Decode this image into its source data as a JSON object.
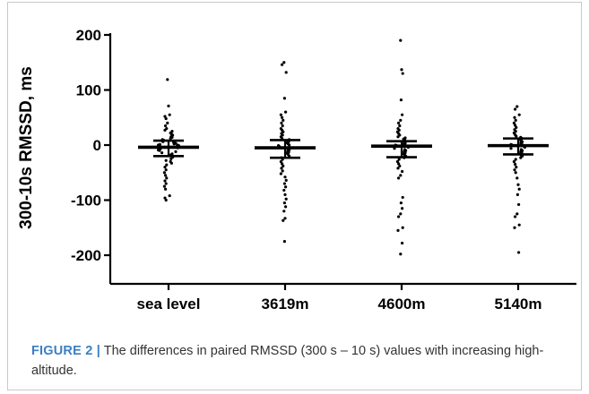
{
  "colors": {
    "axis": "#000000",
    "points": "#000000",
    "figure_label": "#3b7fc4",
    "caption_text": "#333333"
  },
  "caption": {
    "label": "FIGURE 2 |",
    "text": "The differences in paired RMSSD (300 s – 10 s) values with increasing high-altitude."
  },
  "chart_data": {
    "type": "scatter",
    "subtype": "dot-plot with mean and SD bars",
    "title": "",
    "xlabel": "",
    "ylabel": "300-10s RMSSD, ms",
    "ylim": [
      -250,
      200
    ],
    "yticks": [
      200,
      100,
      0,
      -100,
      -200
    ],
    "ytick_labels": [
      "200",
      "100",
      "0",
      "-100",
      "-200"
    ],
    "grid": false,
    "legend": "none",
    "categories": [
      "sea level",
      "3619m",
      "4600m",
      "5140m"
    ],
    "summary": [
      {
        "category": "sea level",
        "mean": -4,
        "upper": 8,
        "lower": -20
      },
      {
        "category": "3619m",
        "mean": -5,
        "upper": 9,
        "lower": -23
      },
      {
        "category": "4600m",
        "mean": -2,
        "upper": 7,
        "lower": -22
      },
      {
        "category": "5140m",
        "mean": -1,
        "upper": 12,
        "lower": -17
      }
    ],
    "series": [
      {
        "category": "sea level",
        "values": [
          119,
          71,
          55,
          52,
          48,
          40,
          35,
          30,
          27,
          25,
          22,
          20,
          18,
          15,
          14,
          12,
          10,
          9,
          8,
          6,
          5,
          4,
          3,
          2,
          1,
          0,
          0,
          -1,
          -2,
          -3,
          -4,
          -5,
          -6,
          -7,
          -8,
          -9,
          -10,
          -12,
          -14,
          -16,
          -18,
          -20,
          -22,
          -25,
          -28,
          -30,
          -33,
          -36,
          -40,
          -45,
          -50,
          -55,
          -60,
          -65,
          -70,
          -75,
          -80,
          -92,
          -96,
          -100
        ]
      },
      {
        "category": "3619m",
        "values": [
          150,
          146,
          132,
          85,
          60,
          55,
          50,
          45,
          40,
          35,
          30,
          27,
          24,
          21,
          18,
          15,
          12,
          10,
          8,
          6,
          4,
          2,
          0,
          -1,
          -3,
          -5,
          -7,
          -9,
          -11,
          -13,
          -15,
          -17,
          -20,
          -23,
          -26,
          -30,
          -34,
          -38,
          -42,
          -47,
          -52,
          -58,
          -64,
          -70,
          -76,
          -82,
          -90,
          -98,
          -105,
          -112,
          -120,
          -133,
          -137,
          -175
        ]
      },
      {
        "category": "4600m",
        "values": [
          190,
          137,
          130,
          82,
          55,
          45,
          40,
          35,
          30,
          27,
          24,
          21,
          18,
          15,
          13,
          11,
          9,
          7,
          5,
          3,
          1,
          0,
          -1,
          -2,
          -4,
          -6,
          -8,
          -10,
          -12,
          -14,
          -16,
          -18,
          -20,
          -23,
          -26,
          -30,
          -34,
          -38,
          -42,
          -48,
          -55,
          -60,
          -95,
          -105,
          -115,
          -125,
          -130,
          -150,
          -155,
          -178,
          -198
        ]
      },
      {
        "category": "5140m",
        "values": [
          70,
          65,
          55,
          50,
          45,
          40,
          36,
          32,
          28,
          25,
          22,
          19,
          16,
          14,
          12,
          10,
          8,
          6,
          4,
          2,
          1,
          0,
          -1,
          -2,
          -4,
          -6,
          -8,
          -10,
          -12,
          -14,
          -16,
          -18,
          -20,
          -23,
          -26,
          -30,
          -35,
          -40,
          -45,
          -50,
          -60,
          -72,
          -80,
          -90,
          -108,
          -125,
          -130,
          -145,
          -150,
          -195
        ]
      }
    ]
  }
}
